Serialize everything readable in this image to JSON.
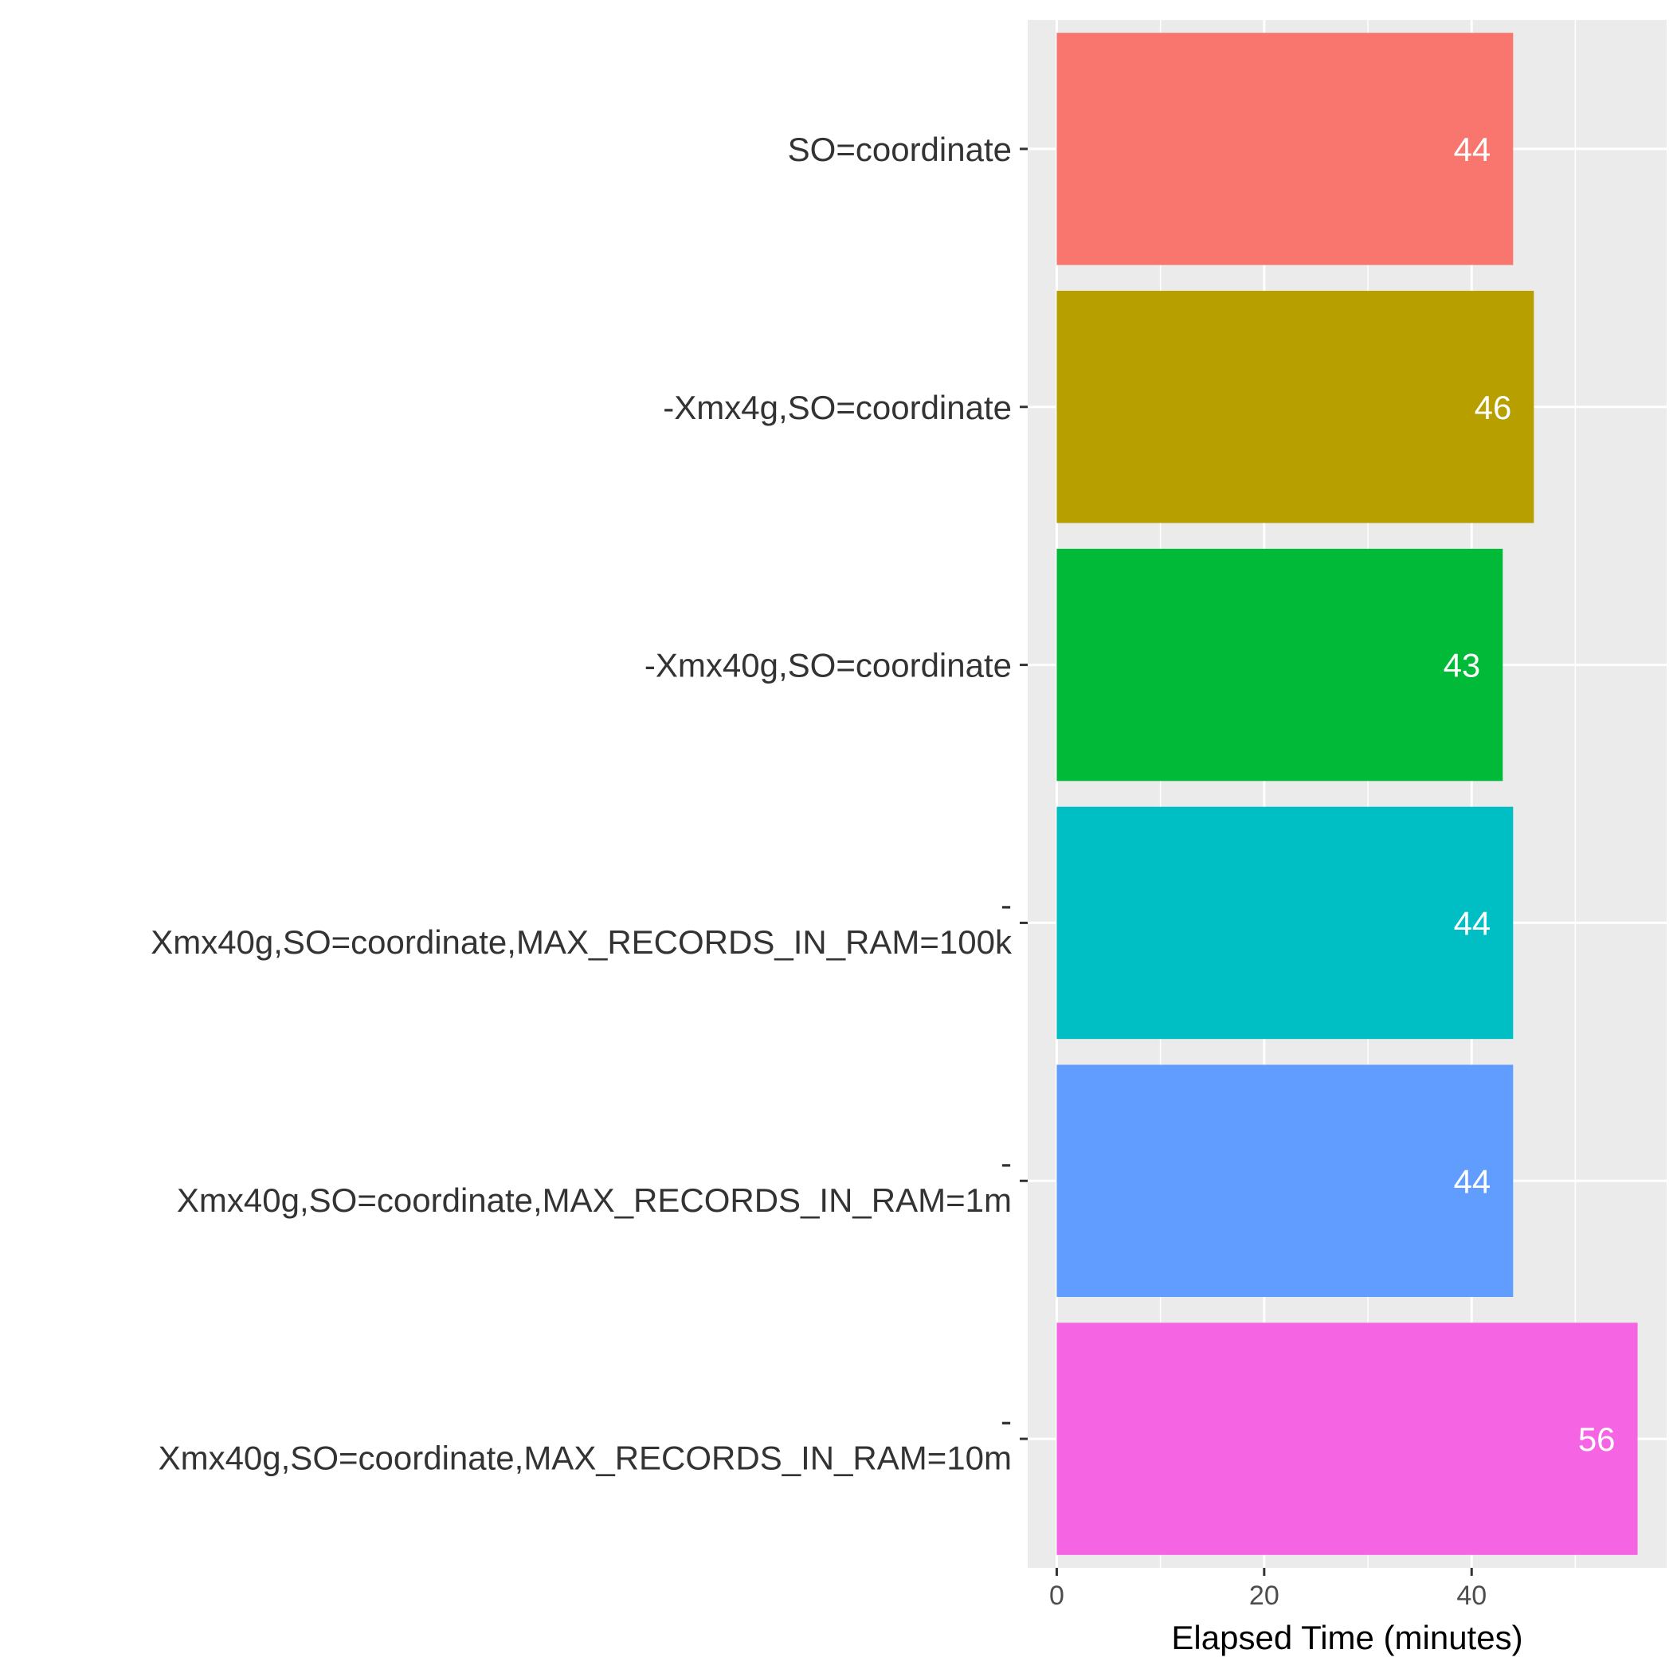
{
  "chart_data": {
    "type": "bar",
    "orientation": "horizontal",
    "categories": [
      [
        "SO=coordinate"
      ],
      [
        "-Xmx4g,SO=coordinate"
      ],
      [
        "-Xmx40g,SO=coordinate"
      ],
      [
        "-",
        "Xmx40g,SO=coordinate,MAX_RECORDS_IN_RAM=100k"
      ],
      [
        "-",
        "Xmx40g,SO=coordinate,MAX_RECORDS_IN_RAM=1m"
      ],
      [
        "-",
        "Xmx40g,SO=coordinate,MAX_RECORDS_IN_RAM=10m"
      ]
    ],
    "values": [
      44,
      46,
      43,
      44,
      44,
      56
    ],
    "data_labels": [
      "44",
      "46",
      "43",
      "44",
      "44",
      "56"
    ],
    "colors": [
      "#F8766D",
      "#B79F00",
      "#00BA38",
      "#00BFC4",
      "#619CFF",
      "#F564E3"
    ],
    "xlabel": "Elapsed Time (minutes)",
    "ylabel": "",
    "xlim": [
      -2.8,
      58.8
    ],
    "x_ticks": [
      0,
      20,
      40
    ],
    "x_minor_ticks": [
      10,
      30,
      50
    ],
    "grid": true,
    "background": "#EBEBEB",
    "legend": "none"
  }
}
